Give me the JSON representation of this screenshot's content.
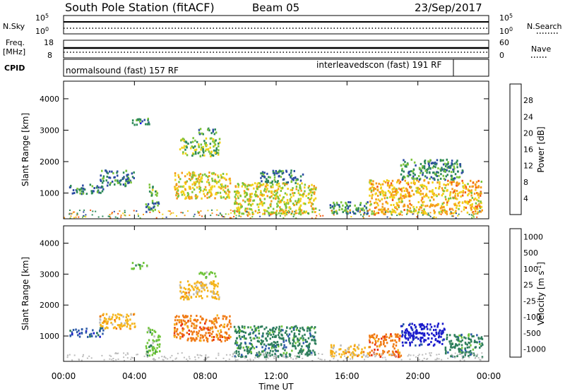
{
  "header": {
    "station": "South Pole Station (fitACF)",
    "beam": "Beam 05",
    "date": "23/Sep/2017"
  },
  "strips": {
    "nsky_label": "N.Sky",
    "nsky_ticks": [
      "10^5",
      "10^0"
    ],
    "nsearch_label": "N.Search",
    "nsearch_ticks": [
      "10^5",
      "10^0"
    ],
    "freq_label_1": "Freq.",
    "freq_label_2": "[MHz]",
    "freq_ticks": [
      "18",
      "8"
    ],
    "nave_label": "Nave",
    "nave_ticks": [
      "60",
      "0"
    ],
    "cpid_label": "CPID",
    "cpid_segments": [
      {
        "label": "normalsound (fast) 157 RF",
        "start": 0,
        "end": 22
      },
      {
        "label": "interleavedscon (fast) 191 RF",
        "start": 22,
        "end": 24
      }
    ]
  },
  "chart_data": [
    {
      "type": "heatmap",
      "title": "",
      "xlabel": "Time UT",
      "ylabel": "Slant Range [km]",
      "x_ticks": [
        "00:00",
        "04:00",
        "08:00",
        "12:00",
        "16:00",
        "20:00",
        "00:00"
      ],
      "xlim": [
        0,
        24
      ],
      "y_ticks": [
        1000,
        2000,
        3000,
        4000
      ],
      "ylim": [
        180,
        4560
      ],
      "colorbar": {
        "label": "Power [dB]",
        "ticks": [
          4,
          8,
          12,
          16,
          20,
          24,
          28
        ],
        "range": [
          0,
          32
        ],
        "colors": [
          "#0000ee",
          "#2c4ba4",
          "#2f8a5a",
          "#7cc43a",
          "#f2d21a",
          "#f59a1a",
          "#f25a14",
          "#e60d0d"
        ]
      },
      "echo_regions": [
        {
          "t0": 0.3,
          "t1": 2.2,
          "r0": 1000,
          "r1": 1300,
          "value": 9
        },
        {
          "t0": 2.0,
          "t1": 4.0,
          "r0": 1250,
          "r1": 1750,
          "value": 9
        },
        {
          "t0": 3.8,
          "t1": 4.8,
          "r0": 3200,
          "r1": 3400,
          "value": 8
        },
        {
          "t0": 4.8,
          "t1": 5.3,
          "r0": 900,
          "r1": 1300,
          "value": 13
        },
        {
          "t0": 4.6,
          "t1": 5.4,
          "r0": 400,
          "r1": 800,
          "value": 11
        },
        {
          "t0": 6.2,
          "t1": 9.4,
          "r0": 850,
          "r1": 1700,
          "value": 18
        },
        {
          "t0": 6.5,
          "t1": 8.8,
          "r0": 2200,
          "r1": 2800,
          "value": 14
        },
        {
          "t0": 7.6,
          "t1": 8.6,
          "r0": 2900,
          "r1": 3100,
          "value": 9
        },
        {
          "t0": 9.6,
          "t1": 14.2,
          "r0": 350,
          "r1": 1350,
          "value": 17
        },
        {
          "t0": 11.0,
          "t1": 13.5,
          "r0": 1350,
          "r1": 1750,
          "value": 9
        },
        {
          "t0": 15.0,
          "t1": 17.2,
          "r0": 350,
          "r1": 750,
          "value": 10
        },
        {
          "t0": 17.2,
          "t1": 23.6,
          "r0": 350,
          "r1": 1450,
          "value": 20
        },
        {
          "t0": 19.0,
          "t1": 22.5,
          "r0": 1450,
          "r1": 2100,
          "value": 10
        }
      ]
    },
    {
      "type": "heatmap",
      "title": "",
      "xlabel": "Time UT",
      "ylabel": "Slant Range [km]",
      "x_ticks": [
        "00:00",
        "04:00",
        "08:00",
        "12:00",
        "16:00",
        "20:00",
        "00:00"
      ],
      "xlim": [
        0,
        24
      ],
      "y_ticks": [
        1000,
        2000,
        3000,
        4000
      ],
      "ylim": [
        180,
        4560
      ],
      "colorbar": {
        "label": "Velocity [m s^-1]",
        "ticks": [
          "1000",
          "500",
          "100",
          "25",
          "-25",
          "-100",
          "-500",
          "-1000"
        ],
        "colors": [
          "#1a1acc",
          "#2c5aa8",
          "#2f7f5c",
          "#6fc43a",
          "#bcbcbc",
          "#f5b41a",
          "#f07a14",
          "#e62a0d",
          "#e60d0d"
        ]
      },
      "echo_regions": [
        {
          "t0": 0.3,
          "t1": 2.2,
          "r0": 1000,
          "r1": 1300,
          "value": "500"
        },
        {
          "t0": 2.0,
          "t1": 4.0,
          "r0": 1250,
          "r1": 1750,
          "value": "-100"
        },
        {
          "t0": 3.8,
          "t1": 4.8,
          "r0": 3200,
          "r1": 3400,
          "value": "25"
        },
        {
          "t0": 4.6,
          "t1": 5.4,
          "r0": 400,
          "r1": 1300,
          "value": "25"
        },
        {
          "t0": 6.2,
          "t1": 9.4,
          "r0": 850,
          "r1": 1700,
          "value": "-500"
        },
        {
          "t0": 6.5,
          "t1": 8.8,
          "r0": 2200,
          "r1": 2800,
          "value": "-100"
        },
        {
          "t0": 7.6,
          "t1": 8.6,
          "r0": 2900,
          "r1": 3100,
          "value": "25"
        },
        {
          "t0": 9.6,
          "t1": 14.2,
          "r0": 350,
          "r1": 1350,
          "value": "100"
        },
        {
          "t0": 15.0,
          "t1": 17.2,
          "r0": 350,
          "r1": 750,
          "value": "-100"
        },
        {
          "t0": 17.2,
          "t1": 19.0,
          "r0": 350,
          "r1": 1100,
          "value": "-500"
        },
        {
          "t0": 19.0,
          "t1": 21.5,
          "r0": 700,
          "r1": 1450,
          "value": "1000"
        },
        {
          "t0": 21.5,
          "t1": 23.6,
          "r0": 350,
          "r1": 1100,
          "value": "100"
        }
      ]
    }
  ]
}
